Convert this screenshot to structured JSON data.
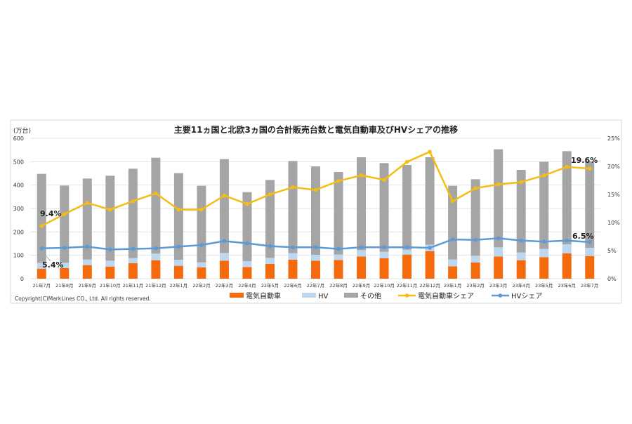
{
  "chart_data": {
    "type": "bar+line",
    "title": "主要11ヵ国と北欧3ヵ国の合計販売台数と電気自動車及びHVシェアの推移",
    "ylabel": "(万台)",
    "ylim": [
      0,
      600
    ],
    "yticks": [
      "0",
      "100",
      "200",
      "300",
      "400",
      "500",
      "600"
    ],
    "y2lim": [
      0,
      25
    ],
    "y2ticks": [
      "0%",
      "5%",
      "10%",
      "15%",
      "20%",
      "25%"
    ],
    "grid": true,
    "legend_position": "bottom",
    "categories": [
      "21年7月",
      "21年8月",
      "21年9月",
      "21年10月",
      "21年11月",
      "21年12月",
      "22年1月",
      "22年2月",
      "22年3月",
      "22年4月",
      "22年5月",
      "22年6月",
      "22年7月",
      "22年8月",
      "22年9月",
      "22年10月",
      "22年11月",
      "22年12月",
      "23年1月",
      "23年2月",
      "23年3月",
      "23年4月",
      "23年5月",
      "23年6月",
      "23年7月"
    ],
    "bar_series": [
      {
        "name": "電気自動車",
        "color": "#f56a0c",
        "values": [
          43,
          45,
          58,
          52,
          66,
          79,
          55,
          48,
          77,
          50,
          63,
          81,
          77,
          80,
          95,
          87,
          103,
          118,
          53,
          69,
          95,
          79,
          92,
          108,
          97
        ]
      },
      {
        "name": "HV",
        "color": "#bdd7ee",
        "values": [
          25,
          23,
          24,
          25,
          22,
          28,
          26,
          22,
          33,
          25,
          26,
          28,
          25,
          23,
          27,
          28,
          21,
          27,
          29,
          29,
          39,
          33,
          35,
          39,
          35
        ]
      },
      {
        "name": "その他",
        "color": "#a5a5a5",
        "values": [
          380,
          330,
          346,
          363,
          382,
          410,
          370,
          327,
          401,
          295,
          333,
          394,
          378,
          353,
          397,
          379,
          362,
          374,
          315,
          327,
          419,
          353,
          373,
          398,
          370
        ]
      }
    ],
    "line_series": [
      {
        "name": "電気自動車シェア",
        "color": "#f5bd12",
        "axis": "right",
        "values": [
          9.4,
          11.5,
          13.5,
          12.3,
          13.8,
          15.2,
          12.3,
          12.3,
          14.8,
          13.3,
          15.0,
          16.3,
          15.8,
          17.4,
          18.4,
          17.6,
          20.8,
          22.6,
          13.8,
          16.1,
          16.8,
          17.2,
          18.4,
          19.9,
          19.6
        ]
      },
      {
        "name": "HVシェア",
        "color": "#5b9bd5",
        "axis": "right",
        "values": [
          5.4,
          5.5,
          5.7,
          5.2,
          5.3,
          5.4,
          5.7,
          6.0,
          6.7,
          6.3,
          5.8,
          5.6,
          5.6,
          5.3,
          5.6,
          5.6,
          5.6,
          5.5,
          7.0,
          6.9,
          7.2,
          6.8,
          6.6,
          6.8,
          6.5
        ]
      }
    ],
    "annotations": [
      "9.4%",
      "5.4%",
      "19.6%",
      "6.5%"
    ],
    "copyright": "Copyright(C)MarkLines CO., Ltd. All rights reserved."
  }
}
